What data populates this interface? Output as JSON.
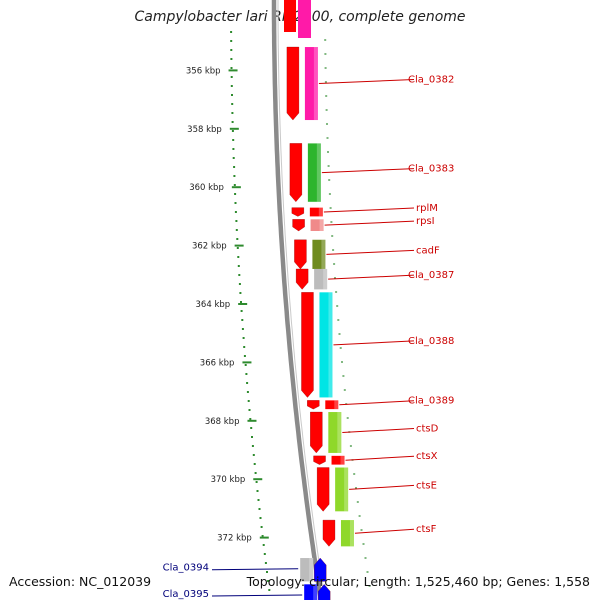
{
  "title": "Campylobacter lari RM2100, complete genome",
  "accession": "Accession: NC_012039",
  "info": "Topology: circular; Length: 1,525,460 bp; Genes: 1,558",
  "colors": {
    "backbone": "#8a8a8a",
    "tick": "#2e8b2e",
    "forward_label": "#cc0000",
    "reverse_label": "#00007a",
    "red": "#ff0000",
    "magenta": "#ff1aa8",
    "green": "#2db52d",
    "pink": "#f08a8a",
    "olive": "#6f8b1f",
    "grey": "#bcbcbc",
    "cyan": "#00e5e5",
    "lime": "#8fd82a",
    "blue": "#0000ff"
  },
  "ticks": [
    {
      "kbp": 356,
      "label": "356 kbp"
    },
    {
      "kbp": 358,
      "label": "358 kbp"
    },
    {
      "kbp": 360,
      "label": "360 kbp"
    },
    {
      "kbp": 362,
      "label": "362 kbp"
    },
    {
      "kbp": 364,
      "label": "364 kbp"
    },
    {
      "kbp": 366,
      "label": "366 kbp"
    },
    {
      "kbp": 368,
      "label": "368 kbp"
    },
    {
      "kbp": 370,
      "label": "370 kbp"
    },
    {
      "kbp": 372,
      "label": "372 kbp"
    }
  ],
  "genes": [
    {
      "name": "Cla_0382",
      "start_kbp": 355.2,
      "end_kbp": 357.7,
      "strand": "+",
      "color": "magenta"
    },
    {
      "name": "Cla_0383",
      "start_kbp": 358.5,
      "end_kbp": 360.5,
      "strand": "+",
      "color": "green"
    },
    {
      "name": "rplM",
      "start_kbp": 360.7,
      "end_kbp": 361.0,
      "strand": "+",
      "color": "red"
    },
    {
      "name": "rpsI",
      "start_kbp": 361.1,
      "end_kbp": 361.5,
      "strand": "+",
      "color": "pink"
    },
    {
      "name": "cadF",
      "start_kbp": 361.8,
      "end_kbp": 362.8,
      "strand": "+",
      "color": "olive"
    },
    {
      "name": "Cla_0387",
      "start_kbp": 362.8,
      "end_kbp": 363.5,
      "strand": "+",
      "color": "grey"
    },
    {
      "name": "Cla_0388",
      "start_kbp": 363.6,
      "end_kbp": 367.2,
      "strand": "+",
      "color": "cyan"
    },
    {
      "name": "Cla_0389",
      "start_kbp": 367.3,
      "end_kbp": 367.6,
      "strand": "+",
      "color": "red"
    },
    {
      "name": "ctsD",
      "start_kbp": 367.7,
      "end_kbp": 369.1,
      "strand": "+",
      "color": "lime"
    },
    {
      "name": "ctsX",
      "start_kbp": 369.2,
      "end_kbp": 369.5,
      "strand": "+",
      "color": "red"
    },
    {
      "name": "ctsE",
      "start_kbp": 369.6,
      "end_kbp": 371.1,
      "strand": "+",
      "color": "lime"
    },
    {
      "name": "ctsF",
      "start_kbp": 371.4,
      "end_kbp": 372.3,
      "strand": "+",
      "color": "lime"
    },
    {
      "name": "Cla_0394",
      "start_kbp": 372.7,
      "end_kbp": 373.5,
      "strand": "-",
      "color": "grey"
    },
    {
      "name": "Cla_0395",
      "start_kbp": 373.6,
      "end_kbp": 374.4,
      "strand": "-",
      "color": "blue"
    }
  ]
}
